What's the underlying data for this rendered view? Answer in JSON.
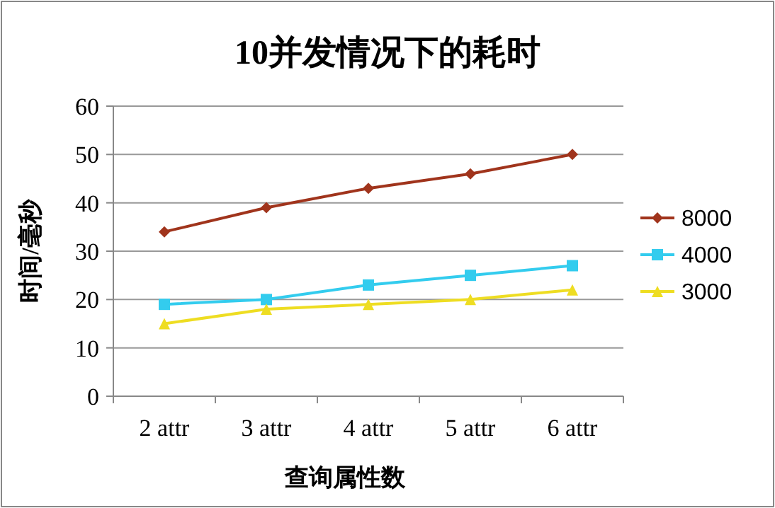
{
  "chart_data": {
    "type": "line",
    "title": "10并发情况下的耗时",
    "xlabel": "查询属性数",
    "ylabel": "时间/毫秒",
    "categories": [
      "2 attr",
      "3 attr",
      "4 attr",
      "5 attr",
      "6 attr"
    ],
    "series": [
      {
        "name": "8000",
        "color": "#a0341c",
        "marker": "diamond",
        "values": [
          34,
          39,
          43,
          46,
          50
        ]
      },
      {
        "name": "4000",
        "color": "#33ccee",
        "marker": "square",
        "values": [
          19,
          20,
          23,
          25,
          27
        ]
      },
      {
        "name": "3000",
        "color": "#eedd22",
        "marker": "triangle",
        "values": [
          15,
          18,
          19,
          20,
          22
        ]
      }
    ],
    "ylim": [
      0,
      60
    ],
    "yticks": [
      0,
      10,
      20,
      30,
      40,
      50,
      60
    ],
    "grid": "y",
    "legend": "right"
  }
}
